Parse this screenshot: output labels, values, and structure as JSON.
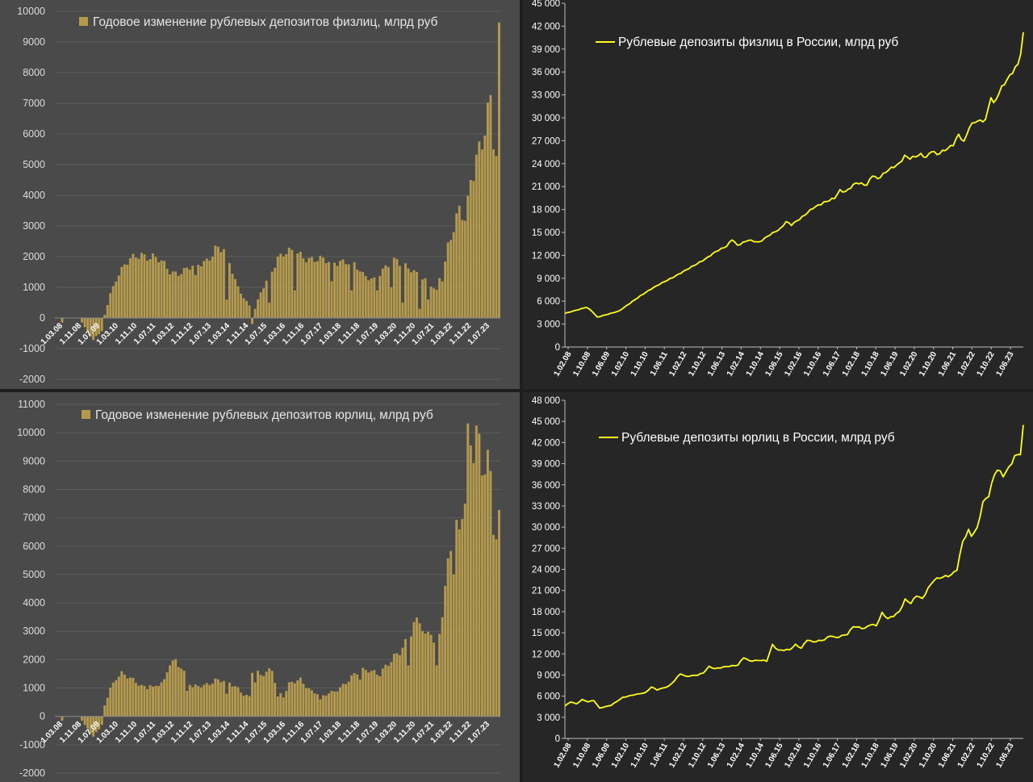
{
  "chart_data": [
    {
      "type": "bar",
      "legend": "Годовое изменение рублевых депозитов физлиц, млрд руб",
      "ylim": [
        -2000,
        10000
      ],
      "yticks": [
        10000,
        9000,
        8000,
        7000,
        6000,
        5000,
        4000,
        3000,
        2000,
        1000,
        0,
        -1000,
        -2000
      ],
      "xtick_labels": [
        "1.03.08",
        "1.11.08",
        "1.07.09",
        "1.03.10",
        "1.11.10",
        "1.07.11",
        "1.03.12",
        "1.11.12",
        "1.07.13",
        "1.03.14",
        "1.11.14",
        "1.07.15",
        "1.03.16",
        "1.11.16",
        "1.07.17",
        "1.03.18",
        "1.11.18",
        "1.07.19",
        "1.03.20",
        "1.11.20",
        "1.07.21",
        "1.03.22",
        "1.11.22",
        "1.07.23"
      ],
      "color": "#b59a4e",
      "anchors": [
        [
          0,
          0
        ],
        [
          8,
          0
        ],
        [
          10,
          -300
        ],
        [
          13,
          -700
        ],
        [
          16,
          -400
        ],
        [
          17,
          100
        ],
        [
          19,
          800
        ],
        [
          21,
          1300
        ],
        [
          24,
          1700
        ],
        [
          28,
          2000
        ],
        [
          30,
          2100
        ],
        [
          34,
          2000
        ],
        [
          37,
          1800
        ],
        [
          40,
          1500
        ],
        [
          43,
          1500
        ],
        [
          46,
          1600
        ],
        [
          50,
          1700
        ],
        [
          53,
          1900
        ],
        [
          56,
          2300
        ],
        [
          59,
          2200
        ],
        [
          62,
          1500
        ],
        [
          64,
          1000
        ],
        [
          66,
          700
        ],
        [
          68,
          400
        ],
        [
          69,
          -200
        ],
        [
          70,
          300
        ],
        [
          72,
          800
        ],
        [
          74,
          1200
        ],
        [
          76,
          1600
        ],
        [
          78,
          2000
        ],
        [
          80,
          2100
        ],
        [
          84,
          2100
        ],
        [
          88,
          2000
        ],
        [
          92,
          1900
        ],
        [
          96,
          1800
        ],
        [
          100,
          1900
        ],
        [
          104,
          1800
        ],
        [
          108,
          1400
        ],
        [
          112,
          1300
        ],
        [
          116,
          1600
        ],
        [
          120,
          1900
        ],
        [
          124,
          1700
        ],
        [
          128,
          1300
        ],
        [
          132,
          1100
        ],
        [
          134,
          900
        ],
        [
          136,
          1300
        ],
        [
          138,
          2300
        ],
        [
          140,
          2800
        ],
        [
          142,
          3500
        ],
        [
          144,
          3300
        ],
        [
          146,
          4500
        ],
        [
          148,
          5300
        ],
        [
          150,
          5500
        ],
        [
          152,
          6500
        ],
        [
          154,
          7200
        ],
        [
          155,
          5500
        ],
        [
          156,
          9400
        ]
      ],
      "dips": [
        [
          2,
          -150
        ],
        [
          49,
          1400
        ],
        [
          60,
          600
        ],
        [
          75,
          500
        ],
        [
          84,
          900
        ],
        [
          97,
          1200
        ],
        [
          104,
          900
        ],
        [
          113,
          900
        ],
        [
          118,
          1000
        ],
        [
          122,
          500
        ],
        [
          128,
          300
        ],
        [
          131,
          600
        ],
        [
          135,
          1300
        ],
        [
          146,
          4500
        ],
        [
          154,
          5500
        ]
      ]
    },
    {
      "type": "line",
      "legend": "Рублевые депозиты физлиц в России, млрд руб",
      "ylim": [
        0,
        45000
      ],
      "yticks": [
        "45 000",
        "42 000",
        "39 000",
        "36 000",
        "33 000",
        "30 000",
        "27 000",
        "24 000",
        "21 000",
        "18 000",
        "15 000",
        "12 000",
        "9 000",
        "6 000",
        "3 000",
        "0"
      ],
      "xtick_labels": [
        "1.02.08",
        "1.10.08",
        "1.06.09",
        "1.02.10",
        "1.10.10",
        "1.06.11",
        "1.02.12",
        "1.10.12",
        "1.06.13",
        "1.02.14",
        "1.10.14",
        "1.06.15",
        "1.02.16",
        "1.10.16",
        "1.06.17",
        "1.02.18",
        "1.10.18",
        "1.06.19",
        "1.02.20",
        "1.10.20",
        "1.06.21",
        "1.02.22",
        "1.10.22",
        "1.06.23"
      ],
      "color": "#ffff1a",
      "points": [
        [
          0,
          4400
        ],
        [
          4,
          4800
        ],
        [
          8,
          5200
        ],
        [
          10,
          4700
        ],
        [
          12,
          3900
        ],
        [
          16,
          4300
        ],
        [
          20,
          4700
        ],
        [
          24,
          5700
        ],
        [
          28,
          6700
        ],
        [
          32,
          7600
        ],
        [
          36,
          8400
        ],
        [
          40,
          9100
        ],
        [
          44,
          9900
        ],
        [
          48,
          10700
        ],
        [
          52,
          11500
        ],
        [
          56,
          12500
        ],
        [
          60,
          13200
        ],
        [
          62,
          14100
        ],
        [
          64,
          13300
        ],
        [
          68,
          14000
        ],
        [
          72,
          13700
        ],
        [
          76,
          14700
        ],
        [
          80,
          15500
        ],
        [
          82,
          16400
        ],
        [
          84,
          16000
        ],
        [
          88,
          17000
        ],
        [
          92,
          18200
        ],
        [
          96,
          18900
        ],
        [
          100,
          19500
        ],
        [
          102,
          20500
        ],
        [
          104,
          20300
        ],
        [
          108,
          21500
        ],
        [
          112,
          21200
        ],
        [
          114,
          22500
        ],
        [
          116,
          22000
        ],
        [
          120,
          23200
        ],
        [
          124,
          24000
        ],
        [
          126,
          25000
        ],
        [
          128,
          24700
        ],
        [
          132,
          25200
        ],
        [
          134,
          24800
        ],
        [
          136,
          25700
        ],
        [
          138,
          25200
        ],
        [
          142,
          26000
        ],
        [
          144,
          26500
        ],
        [
          146,
          27800
        ],
        [
          148,
          26800
        ],
        [
          150,
          28800
        ],
        [
          152,
          29500
        ],
        [
          156,
          29700
        ],
        [
          158,
          32800
        ],
        [
          159,
          31800
        ],
        [
          162,
          34000
        ],
        [
          165,
          35500
        ],
        [
          168,
          37000
        ],
        [
          169,
          38500
        ],
        [
          170,
          41200
        ]
      ]
    },
    {
      "type": "bar",
      "legend": "Годовое изменение рублевых депозитов юрлиц, млрд руб",
      "ylim": [
        -2000,
        11000
      ],
      "yticks": [
        11000,
        10000,
        9000,
        8000,
        7000,
        6000,
        5000,
        4000,
        3000,
        2000,
        1000,
        0,
        -1000,
        -2000
      ],
      "xtick_labels": [
        "1.03.08",
        "1.11.08",
        "1.07.09",
        "1.03.10",
        "1.11.10",
        "1.07.11",
        "1.03.12",
        "1.11.12",
        "1.07.13",
        "1.03.14",
        "1.11.14",
        "1.07.15",
        "1.03.16",
        "1.11.16",
        "1.07.17",
        "1.03.18",
        "1.11.18",
        "1.07.19",
        "1.03.20",
        "1.11.20",
        "1.07.21",
        "1.03.22",
        "1.11.22",
        "1.07.23"
      ],
      "color": "#b59a4e",
      "anchors": [
        [
          0,
          0
        ],
        [
          8,
          0
        ],
        [
          10,
          -300
        ],
        [
          13,
          -700
        ],
        [
          16,
          -300
        ],
        [
          17,
          400
        ],
        [
          19,
          1000
        ],
        [
          21,
          1400
        ],
        [
          23,
          1500
        ],
        [
          26,
          1300
        ],
        [
          30,
          1100
        ],
        [
          34,
          1000
        ],
        [
          38,
          1200
        ],
        [
          40,
          1900
        ],
        [
          42,
          2000
        ],
        [
          44,
          1800
        ],
        [
          46,
          1300
        ],
        [
          48,
          1000
        ],
        [
          52,
          1100
        ],
        [
          56,
          1300
        ],
        [
          60,
          1200
        ],
        [
          64,
          1000
        ],
        [
          66,
          800
        ],
        [
          68,
          700
        ],
        [
          69,
          1600
        ],
        [
          72,
          1400
        ],
        [
          76,
          1700
        ],
        [
          78,
          900
        ],
        [
          80,
          700
        ],
        [
          82,
          1100
        ],
        [
          86,
          1300
        ],
        [
          90,
          900
        ],
        [
          94,
          700
        ],
        [
          98,
          900
        ],
        [
          102,
          1200
        ],
        [
          106,
          1500
        ],
        [
          110,
          1700
        ],
        [
          114,
          1500
        ],
        [
          118,
          1900
        ],
        [
          122,
          2500
        ],
        [
          126,
          3200
        ],
        [
          128,
          3300
        ],
        [
          130,
          2700
        ],
        [
          132,
          3100
        ],
        [
          134,
          2300
        ],
        [
          136,
          3800
        ],
        [
          138,
          5200
        ],
        [
          140,
          6500
        ],
        [
          142,
          6300
        ],
        [
          144,
          8500
        ],
        [
          145,
          10100
        ],
        [
          147,
          9800
        ],
        [
          148,
          10200
        ],
        [
          150,
          8500
        ],
        [
          152,
          8700
        ],
        [
          154,
          7600
        ],
        [
          155,
          6500
        ],
        [
          156,
          7100
        ]
      ],
      "dips": [
        [
          2,
          -150
        ],
        [
          33,
          1100
        ],
        [
          46,
          900
        ],
        [
          60,
          800
        ],
        [
          70,
          1200
        ],
        [
          78,
          700
        ],
        [
          93,
          600
        ],
        [
          107,
          1300
        ],
        [
          124,
          1800
        ],
        [
          134,
          1800
        ],
        [
          140,
          5000
        ],
        [
          144,
          7500
        ],
        [
          154,
          6400
        ]
      ]
    },
    {
      "type": "line",
      "legend": "Рублевые депозиты юрлиц в России, млрд руб",
      "ylim": [
        0,
        48000
      ],
      "yticks": [
        "48 000",
        "45 000",
        "42 000",
        "39 000",
        "36 000",
        "33 000",
        "30 000",
        "27 000",
        "24 000",
        "21 000",
        "18 000",
        "15 000",
        "12 000",
        "9 000",
        "6 000",
        "3 000",
        "0"
      ],
      "xtick_labels": [
        "1.02.08",
        "1.10.08",
        "1.06.09",
        "1.02.10",
        "1.10.10",
        "1.06.11",
        "1.02.12",
        "1.10.12",
        "1.06.13",
        "1.02.14",
        "1.10.14",
        "1.06.15",
        "1.02.16",
        "1.10.16",
        "1.06.17",
        "1.02.18",
        "1.10.18",
        "1.06.19",
        "1.02.20",
        "1.10.20",
        "1.06.21",
        "1.02.22",
        "1.10.22",
        "1.06.23"
      ],
      "color": "#ffff1a",
      "points": [
        [
          0,
          4600
        ],
        [
          2,
          5200
        ],
        [
          4,
          4900
        ],
        [
          6,
          5500
        ],
        [
          8,
          5200
        ],
        [
          10,
          5400
        ],
        [
          12,
          4300
        ],
        [
          16,
          4700
        ],
        [
          20,
          5800
        ],
        [
          24,
          6200
        ],
        [
          28,
          6500
        ],
        [
          30,
          7300
        ],
        [
          32,
          6900
        ],
        [
          36,
          7400
        ],
        [
          38,
          8200
        ],
        [
          40,
          9200
        ],
        [
          42,
          8800
        ],
        [
          46,
          9000
        ],
        [
          48,
          9300
        ],
        [
          50,
          10200
        ],
        [
          52,
          9900
        ],
        [
          56,
          10200
        ],
        [
          60,
          10400
        ],
        [
          62,
          11500
        ],
        [
          64,
          11000
        ],
        [
          68,
          11100
        ],
        [
          70,
          11000
        ],
        [
          72,
          13300
        ],
        [
          74,
          12500
        ],
        [
          78,
          12600
        ],
        [
          80,
          13300
        ],
        [
          82,
          12800
        ],
        [
          84,
          14000
        ],
        [
          86,
          13700
        ],
        [
          90,
          14000
        ],
        [
          92,
          14600
        ],
        [
          94,
          14300
        ],
        [
          98,
          14800
        ],
        [
          100,
          15900
        ],
        [
          104,
          15600
        ],
        [
          106,
          16200
        ],
        [
          108,
          16000
        ],
        [
          110,
          17800
        ],
        [
          112,
          17000
        ],
        [
          114,
          17400
        ],
        [
          116,
          18000
        ],
        [
          118,
          19700
        ],
        [
          120,
          19200
        ],
        [
          122,
          20300
        ],
        [
          124,
          19800
        ],
        [
          126,
          21300
        ],
        [
          128,
          22500
        ],
        [
          130,
          22800
        ],
        [
          132,
          23000
        ],
        [
          134,
          23200
        ],
        [
          136,
          24000
        ],
        [
          138,
          28000
        ],
        [
          140,
          29500
        ],
        [
          141,
          28800
        ],
        [
          143,
          29800
        ],
        [
          145,
          33500
        ],
        [
          147,
          34500
        ],
        [
          149,
          37500
        ],
        [
          150,
          38200
        ],
        [
          152,
          37300
        ],
        [
          154,
          38400
        ],
        [
          156,
          40000
        ],
        [
          158,
          40500
        ],
        [
          159,
          44500
        ]
      ]
    }
  ]
}
